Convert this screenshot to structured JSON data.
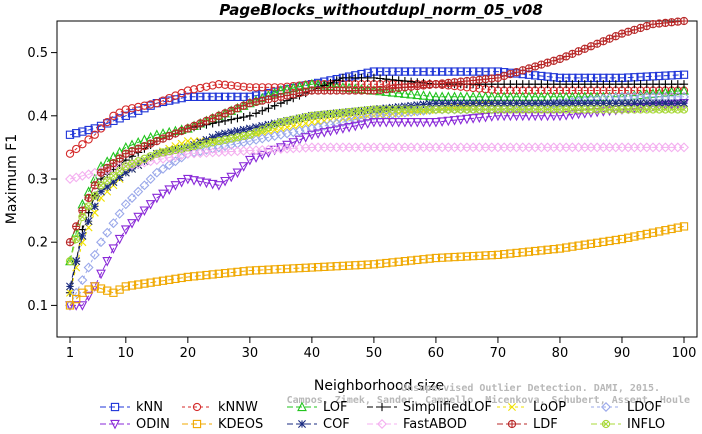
{
  "chart_data": {
    "type": "line",
    "title": "PageBlocks_withoutdupl_norm_05_v08",
    "xlabel": "Neighborhood size",
    "ylabel": "Maximum F1",
    "xlim": [
      1,
      100
    ],
    "ylim": [
      0.05,
      0.55
    ],
    "xticks": [
      1,
      10,
      20,
      30,
      40,
      50,
      60,
      70,
      80,
      90,
      100
    ],
    "yticks": [
      0.1,
      0.2,
      0.3,
      0.4,
      0.5
    ],
    "grid": false,
    "legend_position": "bottom",
    "series": [
      {
        "name": "kNN",
        "color": "#1f35d8",
        "marker": "square",
        "dash": "6,3",
        "points": [
          [
            1,
            0.37
          ],
          [
            5,
            0.38
          ],
          [
            10,
            0.4
          ],
          [
            15,
            0.42
          ],
          [
            20,
            0.43
          ],
          [
            25,
            0.43
          ],
          [
            30,
            0.43
          ],
          [
            35,
            0.44
          ],
          [
            40,
            0.45
          ],
          [
            45,
            0.46
          ],
          [
            50,
            0.47
          ],
          [
            60,
            0.47
          ],
          [
            70,
            0.47
          ],
          [
            80,
            0.46
          ],
          [
            90,
            0.46
          ],
          [
            100,
            0.465
          ]
        ]
      },
      {
        "name": "kNNW",
        "color": "#d42a2a",
        "marker": "circle",
        "dash": "3,3",
        "points": [
          [
            1,
            0.34
          ],
          [
            5,
            0.37
          ],
          [
            8,
            0.4
          ],
          [
            10,
            0.41
          ],
          [
            15,
            0.42
          ],
          [
            20,
            0.44
          ],
          [
            25,
            0.45
          ],
          [
            30,
            0.445
          ],
          [
            35,
            0.445
          ],
          [
            40,
            0.45
          ],
          [
            50,
            0.45
          ],
          [
            60,
            0.45
          ],
          [
            70,
            0.44
          ],
          [
            80,
            0.44
          ],
          [
            90,
            0.44
          ],
          [
            100,
            0.44
          ]
        ]
      },
      {
        "name": "LOF",
        "color": "#22c41e",
        "marker": "triangle",
        "dash": "6,3",
        "points": [
          [
            1,
            0.17
          ],
          [
            3,
            0.26
          ],
          [
            6,
            0.32
          ],
          [
            10,
            0.35
          ],
          [
            15,
            0.37
          ],
          [
            20,
            0.38
          ],
          [
            25,
            0.4
          ],
          [
            30,
            0.42
          ],
          [
            35,
            0.44
          ],
          [
            40,
            0.45
          ],
          [
            50,
            0.44
          ],
          [
            60,
            0.43
          ],
          [
            70,
            0.43
          ],
          [
            80,
            0.43
          ],
          [
            90,
            0.43
          ],
          [
            100,
            0.44
          ]
        ]
      },
      {
        "name": "SimplifiedLOF",
        "color": "#000000",
        "marker": "plus",
        "dash": "6,3",
        "points": [
          [
            1,
            0.12
          ],
          [
            3,
            0.22
          ],
          [
            6,
            0.3
          ],
          [
            10,
            0.33
          ],
          [
            15,
            0.36
          ],
          [
            20,
            0.38
          ],
          [
            25,
            0.39
          ],
          [
            30,
            0.4
          ],
          [
            35,
            0.42
          ],
          [
            40,
            0.44
          ],
          [
            45,
            0.46
          ],
          [
            50,
            0.46
          ],
          [
            60,
            0.45
          ],
          [
            70,
            0.45
          ],
          [
            80,
            0.45
          ],
          [
            90,
            0.45
          ],
          [
            100,
            0.45
          ]
        ]
      },
      {
        "name": "LoOP",
        "color": "#f0e000",
        "marker": "x",
        "dash": "3,3",
        "points": [
          [
            1,
            0.12
          ],
          [
            3,
            0.2
          ],
          [
            6,
            0.27
          ],
          [
            10,
            0.31
          ],
          [
            15,
            0.34
          ],
          [
            20,
            0.36
          ],
          [
            25,
            0.36
          ],
          [
            30,
            0.37
          ],
          [
            35,
            0.38
          ],
          [
            40,
            0.39
          ],
          [
            50,
            0.4
          ],
          [
            60,
            0.41
          ],
          [
            70,
            0.42
          ],
          [
            80,
            0.42
          ],
          [
            90,
            0.42
          ],
          [
            100,
            0.42
          ]
        ]
      },
      {
        "name": "LDOF",
        "color": "#9aa8ea",
        "marker": "diamond",
        "dash": "3,3",
        "points": [
          [
            1,
            0.1
          ],
          [
            3,
            0.14
          ],
          [
            6,
            0.2
          ],
          [
            10,
            0.26
          ],
          [
            15,
            0.31
          ],
          [
            20,
            0.34
          ],
          [
            25,
            0.35
          ],
          [
            30,
            0.36
          ],
          [
            35,
            0.37
          ],
          [
            40,
            0.38
          ],
          [
            50,
            0.4
          ],
          [
            60,
            0.41
          ],
          [
            70,
            0.41
          ],
          [
            80,
            0.42
          ],
          [
            90,
            0.43
          ],
          [
            100,
            0.43
          ]
        ]
      },
      {
        "name": "ODIN",
        "color": "#8a2ad8",
        "marker": "triangle-down",
        "dash": "6,3",
        "points": [
          [
            1,
            0.1
          ],
          [
            3,
            0.1
          ],
          [
            5,
            0.13
          ],
          [
            8,
            0.19
          ],
          [
            10,
            0.22
          ],
          [
            15,
            0.27
          ],
          [
            18,
            0.29
          ],
          [
            20,
            0.3
          ],
          [
            25,
            0.29
          ],
          [
            28,
            0.31
          ],
          [
            30,
            0.33
          ],
          [
            35,
            0.35
          ],
          [
            40,
            0.37
          ],
          [
            50,
            0.39
          ],
          [
            60,
            0.39
          ],
          [
            70,
            0.4
          ],
          [
            80,
            0.4
          ],
          [
            90,
            0.41
          ],
          [
            100,
            0.42
          ]
        ]
      },
      {
        "name": "KDEOS",
        "color": "#f0a800",
        "marker": "square",
        "dash": "6,3",
        "points": [
          [
            1,
            0.1
          ],
          [
            3,
            0.12
          ],
          [
            5,
            0.13
          ],
          [
            8,
            0.12
          ],
          [
            10,
            0.13
          ],
          [
            20,
            0.145
          ],
          [
            30,
            0.155
          ],
          [
            40,
            0.16
          ],
          [
            50,
            0.165
          ],
          [
            60,
            0.175
          ],
          [
            70,
            0.18
          ],
          [
            80,
            0.19
          ],
          [
            90,
            0.205
          ],
          [
            100,
            0.225
          ]
        ]
      },
      {
        "name": "COF",
        "color": "#1a2b80",
        "marker": "star",
        "dash": "6,3",
        "points": [
          [
            1,
            0.13
          ],
          [
            3,
            0.21
          ],
          [
            6,
            0.28
          ],
          [
            10,
            0.31
          ],
          [
            15,
            0.34
          ],
          [
            20,
            0.35
          ],
          [
            25,
            0.37
          ],
          [
            30,
            0.38
          ],
          [
            35,
            0.39
          ],
          [
            40,
            0.4
          ],
          [
            50,
            0.41
          ],
          [
            60,
            0.42
          ],
          [
            70,
            0.42
          ],
          [
            80,
            0.42
          ],
          [
            90,
            0.42
          ],
          [
            100,
            0.42
          ]
        ]
      },
      {
        "name": "FastABOD",
        "color": "#f4b0f0",
        "marker": "diamond",
        "dash": "6,3",
        "points": [
          [
            1,
            0.3
          ],
          [
            5,
            0.31
          ],
          [
            10,
            0.32
          ],
          [
            15,
            0.33
          ],
          [
            20,
            0.34
          ],
          [
            30,
            0.345
          ],
          [
            40,
            0.35
          ],
          [
            50,
            0.35
          ],
          [
            60,
            0.35
          ],
          [
            70,
            0.35
          ],
          [
            80,
            0.35
          ],
          [
            90,
            0.35
          ],
          [
            100,
            0.35
          ]
        ]
      },
      {
        "name": "LDF",
        "color": "#b82828",
        "marker": "circle-plus",
        "dash": "6,3",
        "points": [
          [
            1,
            0.2
          ],
          [
            3,
            0.25
          ],
          [
            6,
            0.31
          ],
          [
            10,
            0.34
          ],
          [
            15,
            0.36
          ],
          [
            20,
            0.38
          ],
          [
            25,
            0.4
          ],
          [
            30,
            0.42
          ],
          [
            35,
            0.43
          ],
          [
            40,
            0.44
          ],
          [
            50,
            0.44
          ],
          [
            60,
            0.45
          ],
          [
            70,
            0.46
          ],
          [
            80,
            0.49
          ],
          [
            85,
            0.51
          ],
          [
            90,
            0.53
          ],
          [
            95,
            0.545
          ],
          [
            100,
            0.55
          ]
        ]
      },
      {
        "name": "INFLO",
        "color": "#a8d838",
        "marker": "circle-x",
        "dash": "6,3",
        "points": [
          [
            1,
            0.17
          ],
          [
            3,
            0.24
          ],
          [
            6,
            0.29
          ],
          [
            10,
            0.32
          ],
          [
            15,
            0.34
          ],
          [
            20,
            0.35
          ],
          [
            25,
            0.36
          ],
          [
            30,
            0.37
          ],
          [
            35,
            0.39
          ],
          [
            40,
            0.4
          ],
          [
            50,
            0.41
          ],
          [
            60,
            0.41
          ],
          [
            70,
            0.41
          ],
          [
            80,
            0.41
          ],
          [
            90,
            0.41
          ],
          [
            100,
            0.41
          ]
        ]
      }
    ]
  },
  "watermark": {
    "line1": "Unsupervised Outlier Detection. DAMI, 2015.",
    "line2": "Campos, Zimek, Sander, Campello, Micenkova, Schubert, Assent, Houle"
  }
}
